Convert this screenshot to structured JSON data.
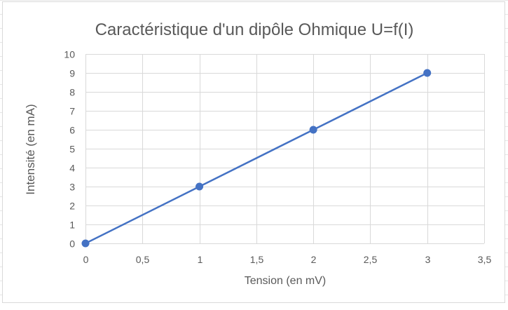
{
  "chart_data": {
    "type": "scatter",
    "title": "Caractéristique d'un dipôle Ohmique U=f(I)",
    "xlabel": "Tension (en mV)",
    "ylabel": "Intensité (en mA)",
    "x": [
      0,
      1,
      2,
      3
    ],
    "y": [
      0,
      3,
      6,
      9
    ],
    "xlim": [
      0,
      3.5
    ],
    "ylim": [
      0,
      10
    ],
    "x_ticks": [
      "0",
      "0,5",
      "1",
      "1,5",
      "2",
      "2,5",
      "3",
      "3,5"
    ],
    "y_ticks": [
      "0",
      "1",
      "2",
      "3",
      "4",
      "5",
      "6",
      "7",
      "8",
      "9",
      "10"
    ],
    "grid": true,
    "line": true,
    "color": "#4472c4"
  }
}
